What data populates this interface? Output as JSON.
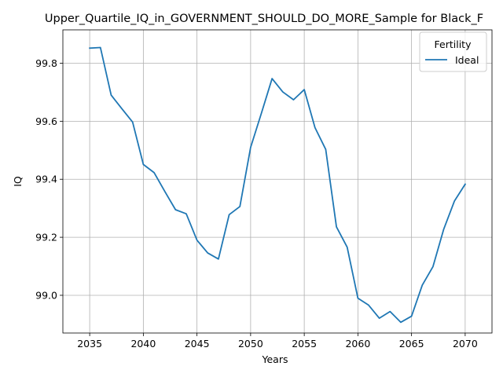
{
  "chart_data": {
    "type": "line",
    "title": "Upper_Quartile_IQ_in_GOVERNMENT_SHOULD_DO_MORE_Sample for Black_F",
    "xlabel": "Years",
    "ylabel": "IQ",
    "xlim": [
      2032.5,
      2072.5
    ],
    "ylim": [
      98.87,
      99.915
    ],
    "xticks": [
      2035,
      2040,
      2045,
      2050,
      2055,
      2060,
      2065,
      2070
    ],
    "yticks": [
      99.0,
      99.2,
      99.4,
      99.6,
      99.8
    ],
    "ytick_labels": [
      "99.0",
      "99.2",
      "99.4",
      "99.6",
      "99.8"
    ],
    "grid": true,
    "legend": {
      "title": "Fertility",
      "placement": "top-right"
    },
    "series": [
      {
        "name": "Ideal",
        "color": "#1f77b4",
        "x": [
          2035,
          2036,
          2037,
          2038,
          2039,
          2040,
          2041,
          2042,
          2043,
          2044,
          2045,
          2046,
          2047,
          2048,
          2049,
          2050,
          2051,
          2052,
          2053,
          2054,
          2055,
          2056,
          2057,
          2058,
          2059,
          2060,
          2061,
          2062,
          2063,
          2064,
          2065,
          2066,
          2067,
          2068,
          2069,
          2070
        ],
        "y": [
          99.852,
          99.854,
          99.69,
          99.643,
          99.597,
          99.451,
          99.423,
          99.358,
          99.295,
          99.281,
          99.19,
          99.146,
          99.125,
          99.278,
          99.306,
          99.51,
          99.627,
          99.747,
          99.701,
          99.674,
          99.709,
          99.578,
          99.503,
          99.236,
          99.166,
          98.99,
          98.966,
          98.921,
          98.944,
          98.907,
          98.928,
          99.035,
          99.099,
          99.228,
          99.325,
          99.383
        ]
      }
    ]
  }
}
